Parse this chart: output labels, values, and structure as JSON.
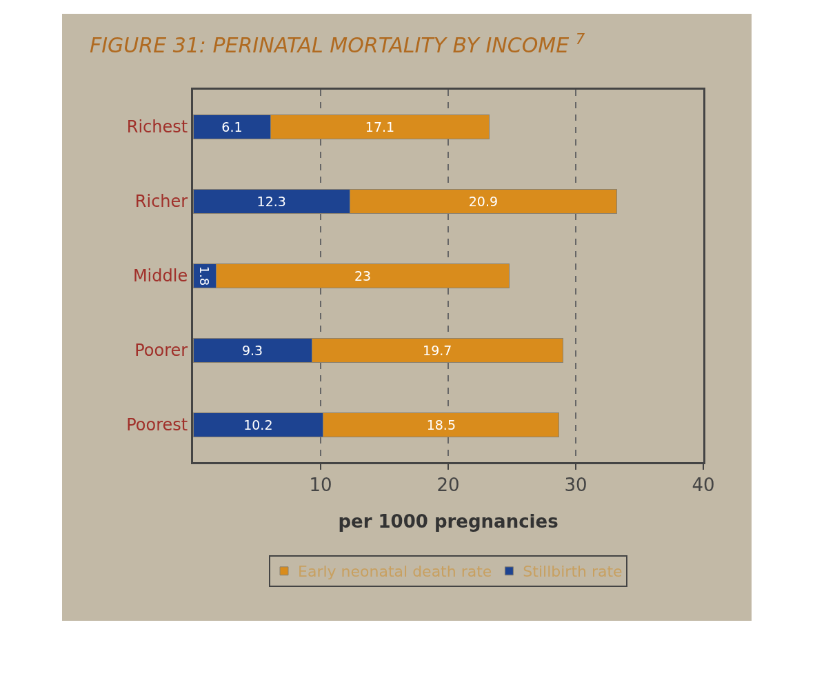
{
  "chart_data": {
    "type": "bar",
    "orientation": "horizontal",
    "stacked": true,
    "title": "FIGURE 31: PERINATAL MORTALITY BY INCOME $^{7}$",
    "xlabel": "per 1000 pregnancies",
    "categories": [
      "Richest",
      "Richer",
      "Middle",
      "Poorer",
      "Poorest"
    ],
    "series": [
      {
        "name": "Stillbirth rate",
        "color": "#1d4391",
        "values": [
          6.1,
          12.3,
          1.8,
          9.3,
          10.2
        ]
      },
      {
        "name": "Early neonatal death rate",
        "color": "#d98c1c",
        "values": [
          17.1,
          20.9,
          23,
          19.7,
          18.5
        ]
      }
    ],
    "xlim": [
      0,
      40
    ],
    "xticks": [
      10,
      20,
      30,
      40
    ],
    "grid": "x",
    "line_style": "dashed",
    "legend": "bottom",
    "data_labels": true
  }
}
